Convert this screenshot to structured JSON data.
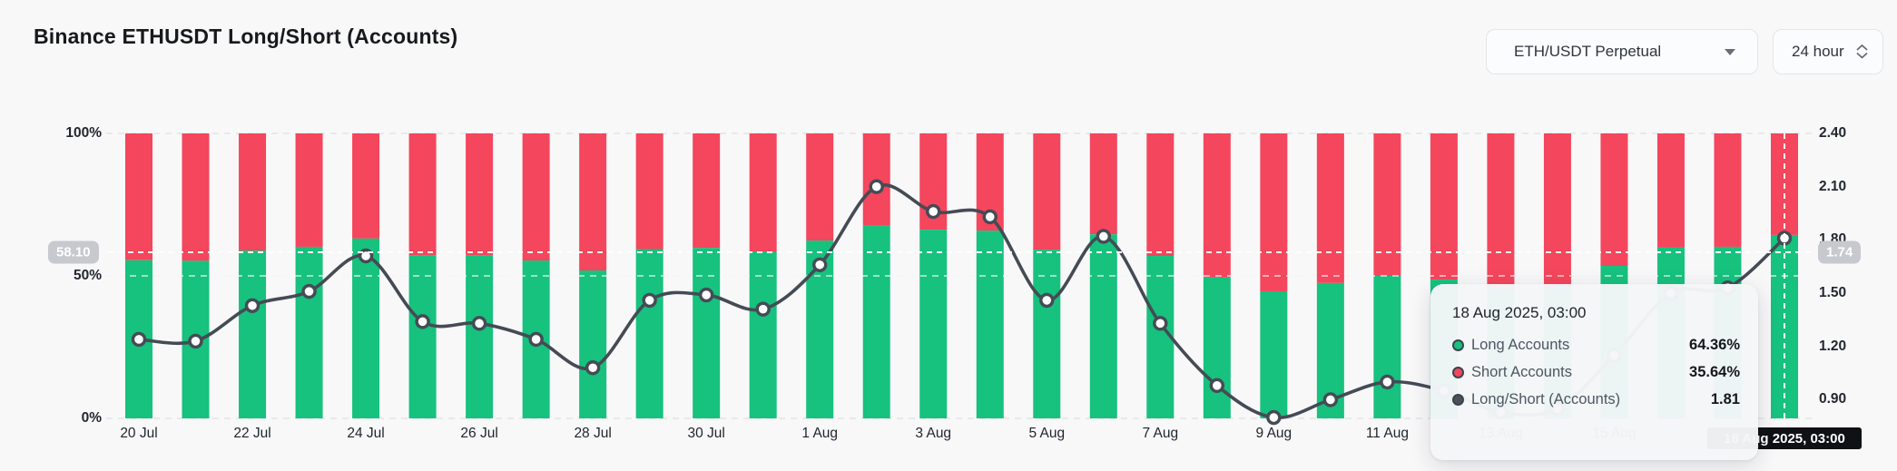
{
  "header": {
    "title": "Binance ETHUSDT Long/Short (Accounts)",
    "pair_selector": {
      "value": "ETH/USDT Perpetual"
    },
    "interval_selector": {
      "value": "24 hour"
    }
  },
  "chart_data": {
    "type": "bar",
    "subtype": "stacked-percent-bars-with-ratio-line",
    "categories": [
      "20 Jul",
      "21 Jul",
      "22 Jul",
      "23 Jul",
      "24 Jul",
      "25 Jul",
      "26 Jul",
      "27 Jul",
      "28 Jul",
      "29 Jul",
      "30 Jul",
      "31 Jul",
      "1 Aug",
      "2 Aug",
      "3 Aug",
      "4 Aug",
      "5 Aug",
      "6 Aug",
      "7 Aug",
      "8 Aug",
      "9 Aug",
      "10 Aug",
      "11 Aug",
      "12 Aug",
      "13 Aug",
      "14 Aug",
      "15 Aug",
      "16 Aug",
      "17 Aug",
      "18 Aug"
    ],
    "series": [
      {
        "name": "Long Accounts",
        "type": "bar",
        "unit": "%",
        "color": "#17c17e",
        "values": [
          55.5,
          55.3,
          58.9,
          60.2,
          63.1,
          57.2,
          57.1,
          55.4,
          51.9,
          59.4,
          59.8,
          58.6,
          62.4,
          67.7,
          66.2,
          65.9,
          59.2,
          64.6,
          57.0,
          49.4,
          44.6,
          47.5,
          50.0,
          48.7,
          45.5,
          46.0,
          53.5,
          59.9,
          60.2,
          64.36
        ]
      },
      {
        "name": "Short Accounts",
        "type": "bar",
        "unit": "%",
        "color": "#f4465c",
        "note": "stacked remainder to 100%"
      },
      {
        "name": "Long/Short (Accounts)",
        "type": "line",
        "color": "#454b55",
        "values": [
          1.24,
          1.23,
          1.43,
          1.51,
          1.71,
          1.34,
          1.33,
          1.24,
          1.08,
          1.46,
          1.49,
          1.41,
          1.66,
          2.1,
          1.96,
          1.93,
          1.46,
          1.82,
          1.33,
          0.98,
          0.8,
          0.9,
          1.0,
          0.95,
          0.83,
          0.85,
          1.15,
          1.5,
          1.53,
          1.81
        ]
      }
    ],
    "left_axis": {
      "ticks": [
        "100%",
        "50%",
        "0%"
      ],
      "min": 0,
      "max": 100,
      "gridlines": "dashed"
    },
    "right_axis": {
      "ticks": [
        "2.40",
        "2.10",
        "1.80",
        "1.50",
        "1.20",
        "0.90"
      ],
      "min": 0.795,
      "max": 2.4
    },
    "x_tick_every": 2,
    "legend_position": "none"
  },
  "crosshair": {
    "left_value": "58.10",
    "right_value": "1.74",
    "x_value": "18 Aug 2025, 03:00"
  },
  "tooltip": {
    "title": "18 Aug 2025, 03:00",
    "rows": [
      {
        "label": "Long Accounts",
        "value": "64.36%",
        "color": "#17c17e"
      },
      {
        "label": "Short Accounts",
        "value": "35.64%",
        "color": "#f4465c"
      },
      {
        "label": "Long/Short (Accounts)",
        "value": "1.81",
        "color": "#4a515b"
      }
    ]
  }
}
